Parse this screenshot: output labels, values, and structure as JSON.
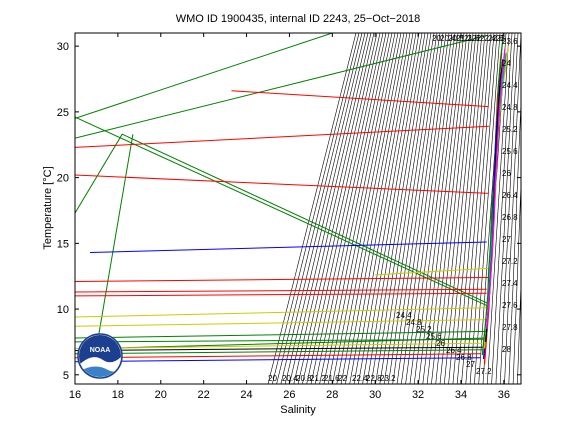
{
  "chart_data": {
    "type": "line",
    "title": "WMO ID 1900435, internal ID 2243, 25−Oct−2018",
    "xlabel": "Salinity",
    "ylabel": "Temperature [°C]",
    "xlim": [
      16,
      36.8
    ],
    "ylim": [
      4.3,
      31
    ],
    "x_ticks": [
      16,
      18,
      20,
      22,
      24,
      26,
      28,
      30,
      32,
      34,
      36
    ],
    "y_ticks": [
      5,
      10,
      15,
      20,
      25,
      30
    ],
    "grid": false,
    "logo_text": "NOAA",
    "isopycnal_top_labels": [
      "20",
      "20.4",
      "20.8",
      "21.2",
      "21.6",
      "22",
      "22.4",
      "22.8",
      "23"
    ],
    "isopycnal_bottom_labels": [
      "20",
      "20.4",
      "20.8",
      "21.2",
      "21.6",
      "22",
      "22.4",
      "22.8",
      "23.2"
    ],
    "isopycnal_left_labels": [
      "24.4",
      "24.8",
      "25.2",
      "25.6",
      "26",
      "26.4",
      "26.8",
      "27",
      "27.2"
    ],
    "isopycnal_right_labels": [
      "23.6",
      "24",
      "24.4",
      "24.8",
      "25.2",
      "25.6",
      "26",
      "26.4",
      "26.8",
      "27",
      "27.2",
      "27.4",
      "27.6",
      "27.8",
      "28"
    ],
    "spikes": [
      {
        "color": "#008000",
        "points": [
          [
            16,
            24.5
          ],
          [
            28,
            31
          ]
        ]
      },
      {
        "color": "#008000",
        "points": [
          [
            16,
            23
          ],
          [
            35.2,
            30.8
          ]
        ]
      },
      {
        "color": "#008000",
        "points": [
          [
            16,
            24.6
          ],
          [
            35.3,
            10.2
          ]
        ]
      },
      {
        "color": "#008000",
        "points": [
          [
            16,
            17.3
          ],
          [
            18.2,
            23.3
          ],
          [
            35.3,
            10.4
          ]
        ]
      },
      {
        "color": "#008000",
        "points": [
          [
            18.7,
            23.3
          ],
          [
            17.0,
            7.0
          ],
          [
            35.2,
            7.8
          ]
        ]
      },
      {
        "color": "#ff0000",
        "points": [
          [
            23.3,
            26.6
          ],
          [
            35.3,
            25.4
          ]
        ]
      },
      {
        "color": "#ff0000",
        "points": [
          [
            16,
            22.3
          ],
          [
            35.3,
            23.9
          ]
        ]
      },
      {
        "color": "#ff0000",
        "points": [
          [
            16,
            20.2
          ],
          [
            35.3,
            18.8
          ]
        ]
      },
      {
        "color": "#0000ff",
        "points": [
          [
            16.7,
            14.3
          ],
          [
            35.2,
            15.1
          ]
        ]
      },
      {
        "color": "#ff0000",
        "points": [
          [
            16,
            11.3
          ],
          [
            35.2,
            11.5
          ]
        ]
      },
      {
        "color": "#ff0000",
        "points": [
          [
            16,
            11.0
          ],
          [
            35.2,
            11.2
          ]
        ]
      },
      {
        "color": "#cccc00",
        "points": [
          [
            16,
            9.4
          ],
          [
            35.2,
            10.1
          ]
        ]
      },
      {
        "color": "#cccc00",
        "points": [
          [
            16,
            8.7
          ],
          [
            35.2,
            9.2
          ]
        ]
      },
      {
        "color": "#008000",
        "points": [
          [
            16,
            7.8
          ],
          [
            35.2,
            8.3
          ]
        ]
      },
      {
        "color": "#008000",
        "points": [
          [
            16,
            7.5
          ],
          [
            35.1,
            7.7
          ]
        ]
      },
      {
        "color": "#cccc00",
        "points": [
          [
            16,
            7.0
          ],
          [
            35.0,
            7.4
          ]
        ]
      },
      {
        "color": "#000000",
        "points": [
          [
            16,
            6.85
          ],
          [
            35.0,
            7.1
          ]
        ]
      },
      {
        "color": "#008000",
        "points": [
          [
            16,
            6.6
          ],
          [
            35.0,
            6.9
          ]
        ]
      },
      {
        "color": "#ff0000",
        "points": [
          [
            16,
            6.3
          ],
          [
            34.9,
            6.6
          ]
        ]
      },
      {
        "color": "#0000ff",
        "points": [
          [
            16,
            6.0
          ],
          [
            34.9,
            6.3
          ]
        ]
      },
      {
        "color": "#ff0000",
        "points": [
          [
            16,
            12.1
          ],
          [
            35.3,
            12.4
          ]
        ]
      },
      {
        "color": "#cccc00",
        "points": [
          [
            30,
            12.6
          ],
          [
            35.3,
            13.1
          ]
        ]
      }
    ],
    "profiles": [
      {
        "color": "#ff0000",
        "points": [
          [
            35.1,
            5.8
          ],
          [
            35.2,
            8
          ],
          [
            35.3,
            10
          ],
          [
            35.35,
            12
          ],
          [
            35.4,
            14
          ],
          [
            35.45,
            16
          ],
          [
            35.5,
            18
          ],
          [
            35.55,
            20
          ],
          [
            35.6,
            22
          ],
          [
            35.65,
            24
          ],
          [
            35.7,
            26
          ],
          [
            35.8,
            28
          ],
          [
            35.9,
            29.5
          ]
        ]
      },
      {
        "color": "#008000",
        "points": [
          [
            35.0,
            6.5
          ],
          [
            35.15,
            9
          ],
          [
            35.25,
            11
          ],
          [
            35.3,
            13
          ],
          [
            35.38,
            15
          ],
          [
            35.42,
            17
          ],
          [
            35.5,
            19
          ],
          [
            35.58,
            21
          ],
          [
            35.62,
            23
          ],
          [
            35.7,
            25
          ],
          [
            35.75,
            27
          ],
          [
            35.85,
            29
          ],
          [
            35.95,
            30.5
          ]
        ]
      },
      {
        "color": "#0000ff",
        "points": [
          [
            35.05,
            6.2
          ],
          [
            35.2,
            8.5
          ],
          [
            35.3,
            10.5
          ],
          [
            35.4,
            13
          ],
          [
            35.45,
            15.5
          ],
          [
            35.5,
            17.5
          ],
          [
            35.55,
            19.5
          ],
          [
            35.6,
            21.5
          ],
          [
            35.65,
            23.5
          ],
          [
            35.75,
            25.5
          ],
          [
            35.85,
            27.5
          ],
          [
            36.0,
            29
          ]
        ]
      },
      {
        "color": "#cccc00",
        "points": [
          [
            35.1,
            7
          ],
          [
            35.25,
            9.5
          ],
          [
            35.35,
            12
          ],
          [
            35.45,
            14.5
          ],
          [
            35.5,
            16.5
          ],
          [
            35.6,
            18.5
          ],
          [
            35.65,
            20.5
          ],
          [
            35.7,
            22.5
          ],
          [
            35.8,
            24.5
          ],
          [
            35.9,
            26.5
          ],
          [
            36.1,
            28.5
          ],
          [
            36.2,
            30
          ]
        ]
      },
      {
        "color": "#00aaaa",
        "points": [
          [
            35.2,
            8
          ],
          [
            35.3,
            11
          ],
          [
            35.4,
            14
          ],
          [
            35.5,
            17
          ],
          [
            35.6,
            20
          ],
          [
            35.7,
            23
          ],
          [
            35.85,
            26
          ],
          [
            36.0,
            28
          ],
          [
            36.1,
            29.5
          ]
        ]
      },
      {
        "color": "#000000",
        "points": [
          [
            35.15,
            7.5
          ],
          [
            35.28,
            10
          ],
          [
            35.38,
            12.5
          ],
          [
            35.48,
            15
          ],
          [
            35.55,
            18
          ],
          [
            35.62,
            21
          ],
          [
            35.7,
            24
          ],
          [
            35.82,
            27
          ],
          [
            35.95,
            29
          ]
        ]
      },
      {
        "color": "#ff00ff",
        "points": [
          [
            35.2,
            8.5
          ],
          [
            35.35,
            11.5
          ],
          [
            35.45,
            14
          ],
          [
            35.55,
            17
          ],
          [
            35.6,
            19.5
          ],
          [
            35.68,
            22
          ],
          [
            35.78,
            25
          ],
          [
            35.9,
            27.5
          ],
          [
            36.05,
            29.8
          ]
        ]
      }
    ]
  }
}
